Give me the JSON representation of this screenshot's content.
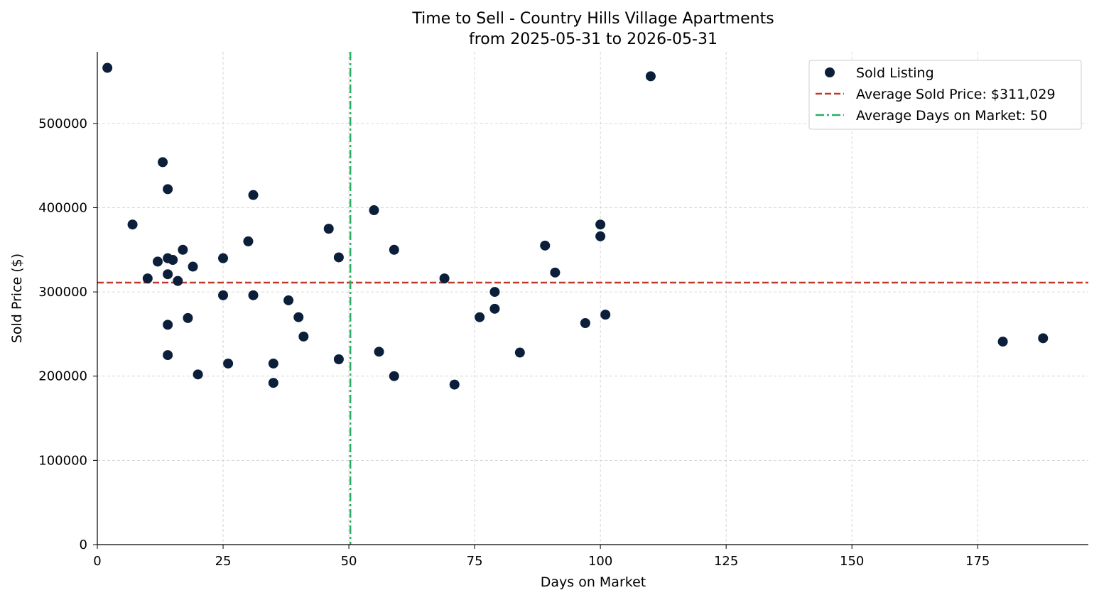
{
  "chart_data": {
    "type": "scatter",
    "title": "Time to Sell - Country Hills Village Apartments",
    "subtitle": "from 2025-05-31 to 2026-05-31",
    "xlabel": "Days on Market",
    "ylabel": "Sold Price ($)",
    "xlim": [
      0,
      197
    ],
    "ylim": [
      0,
      585000
    ],
    "x_ticks": [
      0,
      25,
      50,
      75,
      100,
      125,
      150,
      175
    ],
    "y_ticks": [
      0,
      100000,
      200000,
      300000,
      400000,
      500000
    ],
    "grid": true,
    "legend_position": "top-right",
    "series": [
      {
        "name": "Sold Listing",
        "color": "#0b1f3a",
        "points": [
          [
            2,
            566000
          ],
          [
            7,
            380000
          ],
          [
            10,
            316000
          ],
          [
            12,
            336000
          ],
          [
            13,
            454000
          ],
          [
            14,
            422000
          ],
          [
            14,
            340000
          ],
          [
            14,
            321000
          ],
          [
            14,
            261000
          ],
          [
            14,
            225000
          ],
          [
            15,
            338000
          ],
          [
            16,
            313000
          ],
          [
            17,
            350000
          ],
          [
            18,
            269000
          ],
          [
            19,
            330000
          ],
          [
            20,
            202000
          ],
          [
            25,
            340000
          ],
          [
            25,
            296000
          ],
          [
            26,
            215000
          ],
          [
            30,
            360000
          ],
          [
            31,
            415000
          ],
          [
            31,
            296000
          ],
          [
            35,
            215000
          ],
          [
            35,
            192000
          ],
          [
            38,
            290000
          ],
          [
            40,
            270000
          ],
          [
            41,
            247000
          ],
          [
            46,
            375000
          ],
          [
            48,
            341000
          ],
          [
            48,
            220000
          ],
          [
            55,
            397000
          ],
          [
            56,
            229000
          ],
          [
            59,
            350000
          ],
          [
            59,
            200000
          ],
          [
            69,
            316000
          ],
          [
            71,
            190000
          ],
          [
            76,
            270000
          ],
          [
            79,
            300000
          ],
          [
            79,
            280000
          ],
          [
            84,
            228000
          ],
          [
            89,
            355000
          ],
          [
            91,
            323000
          ],
          [
            97,
            263000
          ],
          [
            100,
            380000
          ],
          [
            100,
            366000
          ],
          [
            101,
            273000
          ],
          [
            110,
            556000
          ],
          [
            180,
            241000
          ],
          [
            188,
            245000
          ]
        ]
      }
    ],
    "reference_lines": [
      {
        "label": "Average Sold Price: $311,029",
        "orientation": "horizontal",
        "value": 311029,
        "color": "#c0392b",
        "style": "dashed"
      },
      {
        "label": "Average Days on Market: 50",
        "orientation": "vertical",
        "value": 50.3,
        "color": "#27ae60",
        "style": "dashdot"
      }
    ]
  }
}
